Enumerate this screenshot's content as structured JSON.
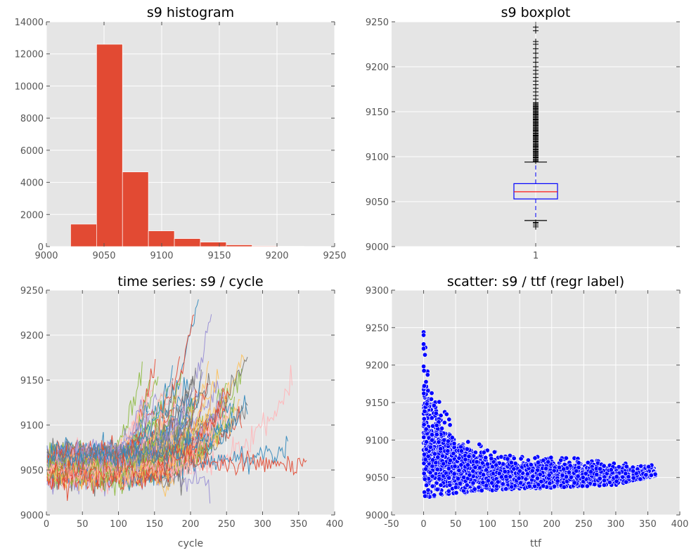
{
  "colors": {
    "bar": "#e24a33",
    "box": "#0000ff",
    "median": "#ff0000",
    "flier": "#000000",
    "scatter": "#0000ff",
    "series": [
      "#348abd",
      "#e24a33",
      "#988ed5",
      "#777777",
      "#fbc15e",
      "#8eba42",
      "#ffb5b8"
    ]
  },
  "chart_data": [
    {
      "type": "bar",
      "title": "s9 histogram",
      "xlabel": "",
      "ylabel": "",
      "xlim": [
        9000,
        9250
      ],
      "ylim": [
        0,
        14000
      ],
      "xticks": [
        9000,
        9050,
        9100,
        9150,
        9200,
        9250
      ],
      "yticks": [
        0,
        2000,
        4000,
        6000,
        8000,
        10000,
        12000,
        14000
      ],
      "bins": [
        {
          "x0": 9021.0,
          "x1": 9043.5,
          "count": 1400
        },
        {
          "x0": 9043.5,
          "x1": 9066.0,
          "count": 12600
        },
        {
          "x0": 9066.0,
          "x1": 9088.5,
          "count": 4650
        },
        {
          "x0": 9088.5,
          "x1": 9111.0,
          "count": 980
        },
        {
          "x0": 9111.0,
          "x1": 9133.5,
          "count": 500
        },
        {
          "x0": 9133.5,
          "x1": 9156.0,
          "count": 280
        },
        {
          "x0": 9156.0,
          "x1": 9178.5,
          "count": 110
        },
        {
          "x0": 9178.5,
          "x1": 9201.0,
          "count": 40
        },
        {
          "x0": 9201.0,
          "x1": 9223.5,
          "count": 20
        },
        {
          "x0": 9223.5,
          "x1": 9246.0,
          "count": 10
        }
      ]
    },
    {
      "type": "box",
      "title": "s9 boxplot",
      "xlabel": "",
      "ylabel": "",
      "ylim": [
        9000,
        9250
      ],
      "yticks": [
        9000,
        9050,
        9100,
        9150,
        9200,
        9250
      ],
      "categories": [
        "1"
      ],
      "box": {
        "whislo": 9029,
        "q1": 9053,
        "median": 9061,
        "q3": 9070,
        "whishi": 9094
      },
      "fliers_high": [
        9096,
        9099,
        9102,
        9105,
        9108,
        9111,
        9114,
        9117,
        9120,
        9123,
        9126,
        9129,
        9132,
        9135,
        9138,
        9141,
        9144,
        9147,
        9150,
        9153,
        9156,
        9160,
        9164,
        9168,
        9172,
        9176,
        9180,
        9184,
        9188,
        9192,
        9196,
        9200,
        9205,
        9210,
        9215,
        9220,
        9225,
        9228,
        9240,
        9244
      ],
      "fliers_low": [
        9022,
        9024,
        9026,
        9027
      ]
    },
    {
      "type": "line",
      "title": "time series: s9 / cycle",
      "xlabel": "cycle",
      "ylabel": "",
      "xlim": [
        0,
        400
      ],
      "ylim": [
        9000,
        9250
      ],
      "xticks": [
        0,
        50,
        100,
        150,
        200,
        250,
        300,
        350,
        400
      ],
      "yticks": [
        9000,
        9050,
        9100,
        9150,
        9200,
        9250
      ],
      "series_count": 100,
      "series_samples": [
        {
          "end_cycle": 212,
          "start_value": 9060,
          "end_value": 9245
        },
        {
          "end_cycle": 205,
          "start_value": 9055,
          "end_value": 9225
        },
        {
          "end_cycle": 230,
          "start_value": 9065,
          "end_value": 9228
        },
        {
          "end_cycle": 215,
          "start_value": 9050,
          "end_value": 9160
        },
        {
          "end_cycle": 275,
          "start_value": 9062,
          "end_value": 9178
        },
        {
          "end_cycle": 272,
          "start_value": 9058,
          "end_value": 9155
        },
        {
          "end_cycle": 341,
          "start_value": 9055,
          "end_value": 9145
        },
        {
          "end_cycle": 335,
          "start_value": 9060,
          "end_value": 9076
        },
        {
          "end_cycle": 362,
          "start_value": 9058,
          "end_value": 9055
        },
        {
          "end_cycle": 228,
          "start_value": 9050,
          "end_value": 9026
        },
        {
          "end_cycle": 192,
          "start_value": 9045,
          "end_value": 9040
        },
        {
          "end_cycle": 178,
          "start_value": 9048,
          "end_value": 9030
        }
      ]
    },
    {
      "type": "scatter",
      "title": "scatter: s9 / ttf (regr label)",
      "xlabel": "ttf",
      "ylabel": "",
      "xlim": [
        -50,
        400
      ],
      "ylim": [
        9000,
        9300
      ],
      "xticks": [
        -50,
        0,
        50,
        100,
        150,
        200,
        250,
        300,
        350,
        400
      ],
      "yticks": [
        9000,
        9050,
        9100,
        9150,
        9200,
        9250,
        9300
      ],
      "envelope": [
        {
          "ttf": 0,
          "low": 9025,
          "high": 9244
        },
        {
          "ttf": 10,
          "low": 9024,
          "high": 9185
        },
        {
          "ttf": 25,
          "low": 9025,
          "high": 9150
        },
        {
          "ttf": 50,
          "low": 9028,
          "high": 9115
        },
        {
          "ttf": 100,
          "low": 9032,
          "high": 9088
        },
        {
          "ttf": 150,
          "low": 9035,
          "high": 9078
        },
        {
          "ttf": 200,
          "low": 9036,
          "high": 9078
        },
        {
          "ttf": 250,
          "low": 9038,
          "high": 9075
        },
        {
          "ttf": 300,
          "low": 9040,
          "high": 9070
        },
        {
          "ttf": 362,
          "low": 9052,
          "high": 9066
        }
      ]
    }
  ]
}
